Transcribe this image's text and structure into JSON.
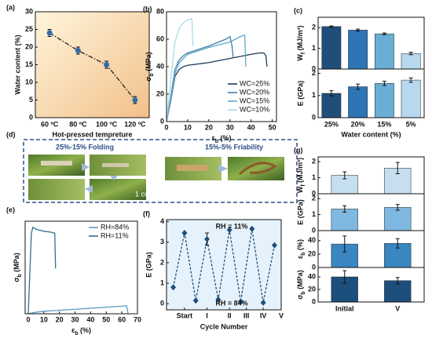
{
  "chart_data": [
    {
      "type": "line",
      "panel": "(a)",
      "xlabel": "Hot-pressed tempreture",
      "ylabel": "Water content (%)",
      "categories": [
        "60 ºC",
        "80 ºC",
        "100 ºC",
        "120 ºC"
      ],
      "series": [
        {
          "color": "#222222",
          "marker_color": "#2e6da4",
          "values": [
            24,
            19,
            15,
            5
          ],
          "errors": [
            1,
            1,
            1,
            1
          ]
        }
      ],
      "ylim": [
        0,
        30
      ],
      "yticks": [
        0,
        5,
        10,
        15,
        20,
        25,
        30
      ],
      "dash": "dash-dot",
      "marker": "circle",
      "background": [
        "#fff5dc",
        "#f2c08a"
      ]
    },
    {
      "type": "line",
      "panel": "(b)",
      "xlabel": {
        "main": "ε",
        "sub": "b",
        "rest": " (%)"
      },
      "ylabel": {
        "main": "σ",
        "sub": "b",
        "rest": " (MPa)"
      },
      "series": [
        {
          "name": "WC=25%",
          "color": "#1b3a5c",
          "x": [
            0,
            2,
            4,
            6,
            8,
            10,
            20,
            30,
            40,
            44,
            46,
            47,
            47.5
          ],
          "values": [
            0,
            15,
            33,
            38,
            40,
            41,
            43,
            46,
            49,
            50,
            50,
            48,
            40
          ]
        },
        {
          "name": "WC=20%",
          "color": "#3b7ea8",
          "x": [
            0,
            2,
            4,
            6,
            8,
            10,
            20,
            28,
            30,
            31,
            31.5
          ],
          "values": [
            0,
            18,
            38,
            45,
            48,
            50,
            55,
            60,
            62,
            55,
            47
          ]
        },
        {
          "name": "WC=15%",
          "color": "#5fa8c8",
          "x": [
            0,
            2,
            4,
            6,
            10,
            20,
            30,
            35,
            37,
            37.5
          ],
          "values": [
            0,
            16,
            35,
            43,
            49,
            54,
            58,
            62,
            63,
            40
          ]
        },
        {
          "name": "WC=10%",
          "color": "#a8dce8",
          "x": [
            0,
            2,
            4,
            6,
            8,
            10,
            12,
            12.5
          ],
          "values": [
            0,
            30,
            58,
            68,
            72,
            74,
            75,
            55
          ]
        }
      ],
      "xlim": [
        0,
        52
      ],
      "xticks": [
        0,
        10,
        20,
        30,
        40,
        50
      ],
      "ylim": [
        0,
        80
      ],
      "yticks": [
        0,
        20,
        40,
        60,
        80
      ],
      "legend": "lower right"
    },
    {
      "type": "bar",
      "panel": "(c)",
      "ylabel": {
        "main": "W",
        "sub": "f",
        "rest": " (MJ/m³)"
      },
      "values": [
        2.05,
        1.88,
        1.7,
        0.75
      ],
      "errors": [
        0.03,
        0.05,
        0.04,
        0.06
      ],
      "colors": [
        "#1f4e79",
        "#2e75b6",
        "#6aaed6",
        "#b7d8ee"
      ],
      "ylim": [
        0,
        2.5
      ],
      "yticks": [
        0,
        1,
        2
      ]
    },
    {
      "type": "bar",
      "xlabel": "Water content (%)",
      "ylabel": "E (GPa)",
      "categories": [
        "25%",
        "20%",
        "15%",
        "5%"
      ],
      "values": [
        1.1,
        1.4,
        1.55,
        1.7
      ],
      "errors": [
        0.12,
        0.12,
        0.1,
        0.1
      ],
      "colors": [
        "#1f4e79",
        "#2e75b6",
        "#6aaed6",
        "#b7d8ee"
      ],
      "ylim": [
        0,
        2.2
      ],
      "yticks": [
        0,
        1,
        2
      ]
    },
    {
      "type": "line",
      "panel": "(e)",
      "xlabel": {
        "main": "ε",
        "sub": "b",
        "rest": " (%)"
      },
      "ylabel": {
        "main": "σ",
        "sub": "b",
        "rest": " (MPa)"
      },
      "series": [
        {
          "name": "RH=84%",
          "color": "#5a9cc0",
          "x": [
            0,
            5,
            10,
            20,
            30,
            40,
            50,
            60,
            63,
            64
          ],
          "values": [
            0,
            1.5,
            2.5,
            3.5,
            4.5,
            5.5,
            6.5,
            7.5,
            8,
            0
          ]
        },
        {
          "name": "RH=11%",
          "color": "#2f6f8f",
          "x": [
            0,
            1,
            2,
            3,
            5,
            10,
            15,
            17,
            17.5
          ],
          "values": [
            0,
            40,
            80,
            86,
            84,
            82,
            81,
            80,
            45
          ]
        }
      ],
      "xlim": [
        -2,
        70
      ],
      "xticks": [
        0,
        10,
        20,
        30,
        40,
        50,
        60,
        70
      ],
      "ylim": [
        0,
        92
      ],
      "legend": "upper right"
    },
    {
      "type": "line",
      "panel": "(f)",
      "xlabel": "Cycle Number",
      "ylabel": "E (GPa)",
      "series": [
        {
          "color": "#1f4e79",
          "marker_color": "#1f4e79",
          "x": [
            0,
            1,
            2,
            3,
            4,
            5,
            6,
            7,
            8,
            9
          ],
          "values": [
            0.8,
            3.45,
            0.15,
            3.15,
            0.2,
            3.6,
            0.1,
            3.65,
            0.05,
            2.85
          ],
          "errors": [
            null,
            null,
            null,
            0.3,
            null,
            null,
            null,
            null,
            null,
            null
          ]
        }
      ],
      "xlim": [
        -0.6,
        9.6
      ],
      "xticks": [
        {
          "value": 1,
          "label": "Start"
        },
        {
          "value": 3,
          "label": "I"
        },
        {
          "value": 5,
          "label": "II"
        },
        {
          "value": 6.5,
          "label": "III"
        },
        {
          "value": 8,
          "label": "IV"
        },
        {
          "value": 9.6,
          "label": "V"
        }
      ],
      "ylim": [
        -0.3,
        4.1
      ],
      "yticks": [
        0,
        1,
        2,
        3,
        4
      ],
      "dash": "dash",
      "marker": "diamond",
      "background": "#e6f2fb",
      "annotations": [
        "RH = 11%",
        "RH = 84%"
      ]
    },
    {
      "type": "bar",
      "panel": "(g)",
      "ylabel": {
        "main": "W",
        "sub": "f",
        "rest": " (MJ/m³)"
      },
      "values": [
        1.15,
        1.6
      ],
      "errors": [
        0.22,
        0.35
      ],
      "color": "#c6dff0",
      "ylim": [
        0,
        2.3
      ],
      "yticks": [
        0,
        1,
        2
      ]
    },
    {
      "type": "bar",
      "ylabel": "E (GPa)",
      "values": [
        1.35,
        1.45
      ],
      "errors": [
        0.2,
        0.18
      ],
      "color": "#7fb8e0",
      "ylim": [
        0,
        2.3
      ],
      "yticks": [
        0,
        1,
        2
      ]
    },
    {
      "type": "bar",
      "ylabel": {
        "main": "ε",
        "sub": "b",
        "rest": " (%)"
      },
      "values": [
        35,
        36
      ],
      "errors": [
        12,
        7
      ],
      "color": "#3a86c0",
      "ylim": [
        0,
        55
      ],
      "yticks": [
        0,
        20,
        40
      ]
    },
    {
      "type": "bar",
      "ylabel": {
        "main": "σ",
        "sub": "b",
        "rest": " (MPa)"
      },
      "categories": [
        "Initial",
        "V"
      ],
      "values": [
        40,
        34
      ],
      "errors": [
        10,
        5
      ],
      "color": "#1d4f7c",
      "ylim": [
        0,
        55
      ],
      "yticks": [
        0,
        20,
        40
      ]
    }
  ],
  "photo_panel": {
    "panel": "(d)",
    "left_title": "25%-15% Folding",
    "right_title": "15%-5% Friability",
    "scale_bar": "1 cm"
  }
}
